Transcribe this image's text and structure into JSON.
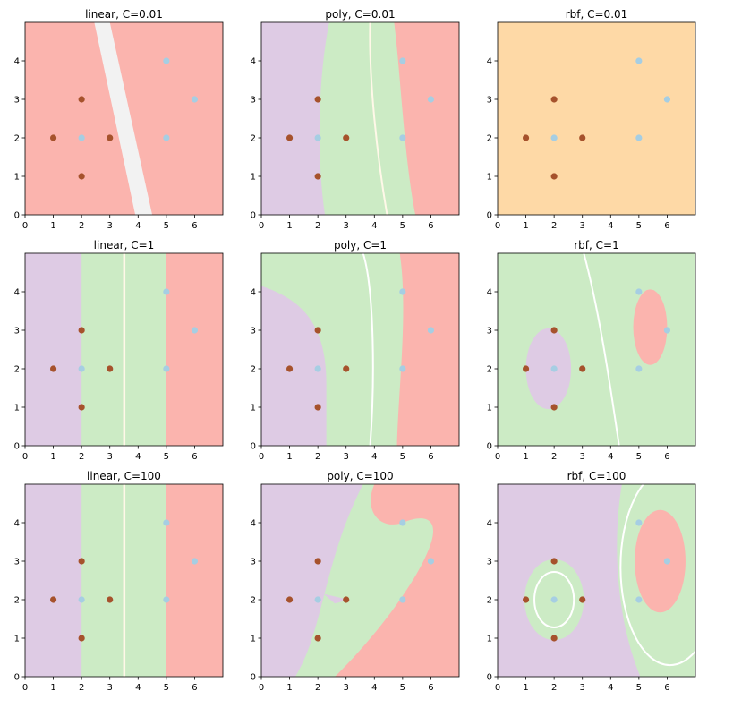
{
  "chart_data": [
    {
      "type": "scatter",
      "title": "linear, C=0.01",
      "kernel": "linear",
      "C": 0.01,
      "variant": "linear-weak"
    },
    {
      "type": "scatter",
      "title": "poly, C=0.01",
      "kernel": "poly",
      "C": 0.01,
      "variant": "poly-weak"
    },
    {
      "type": "scatter",
      "title": "rbf, C=0.01",
      "kernel": "rbf",
      "C": 0.01,
      "variant": "rbf-weak"
    },
    {
      "type": "scatter",
      "title": "linear, C=1",
      "kernel": "linear",
      "C": 1,
      "variant": "linear-strong"
    },
    {
      "type": "scatter",
      "title": "poly, C=1",
      "kernel": "poly",
      "C": 1,
      "variant": "poly-mid"
    },
    {
      "type": "scatter",
      "title": "rbf, C=1",
      "kernel": "rbf",
      "C": 1,
      "variant": "rbf-mid"
    },
    {
      "type": "scatter",
      "title": "linear, C=100",
      "kernel": "linear",
      "C": 100,
      "variant": "linear-strong"
    },
    {
      "type": "scatter",
      "title": "poly, C=100",
      "kernel": "poly",
      "C": 100,
      "variant": "poly-strong"
    },
    {
      "type": "scatter",
      "title": "rbf, C=100",
      "kernel": "rbf",
      "C": 100,
      "variant": "rbf-strong"
    }
  ],
  "shared": {
    "xlim": [
      0,
      7
    ],
    "ylim": [
      0,
      5
    ],
    "xticks": [
      "0",
      "1",
      "2",
      "3",
      "4",
      "5",
      "6"
    ],
    "yticks": [
      "0",
      "1",
      "2",
      "3",
      "4"
    ],
    "points": [
      {
        "x": 1,
        "y": 2,
        "label": 0
      },
      {
        "x": 2,
        "y": 3,
        "label": 0
      },
      {
        "x": 2,
        "y": 1,
        "label": 0
      },
      {
        "x": 3,
        "y": 2,
        "label": 0
      },
      {
        "x": 2,
        "y": 2,
        "label": 1
      },
      {
        "x": 5,
        "y": 4,
        "label": 1
      },
      {
        "x": 5,
        "y": 2,
        "label": 1
      },
      {
        "x": 6,
        "y": 3,
        "label": 1
      }
    ],
    "grid": false,
    "legend": "none"
  },
  "colors": {
    "class0_point": "#a6522c",
    "class1_point": "#a6cee3",
    "region_purple": "#decbe4",
    "region_green": "#ccebc5",
    "region_red": "#fbb4ae",
    "region_orange": "#fed9a6",
    "boundary_light": "#f2f2f2",
    "boundary_cream": "#fff8e8"
  }
}
